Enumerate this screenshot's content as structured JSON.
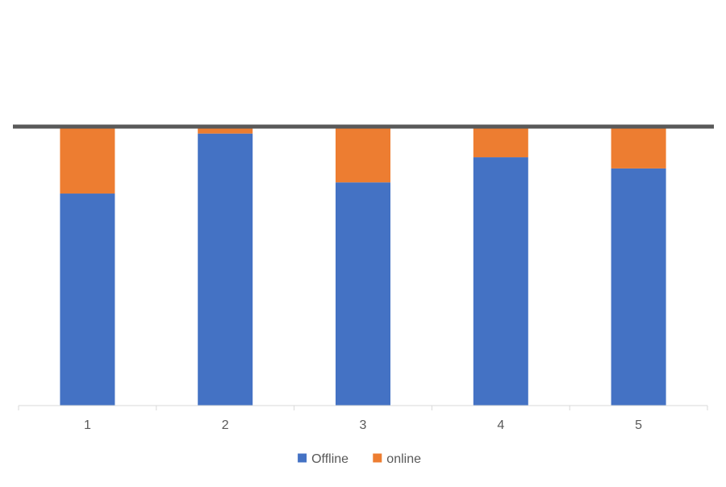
{
  "chart_data": {
    "type": "bar",
    "stacked": true,
    "categories": [
      "1",
      "2",
      "3",
      "4",
      "5"
    ],
    "series": [
      {
        "name": "Offline",
        "color": "#4472C4",
        "values": [
          76,
          97.5,
          80,
          89,
          85
        ]
      },
      {
        "name": "online",
        "color": "#ED7D31",
        "values": [
          24,
          2.5,
          20,
          11,
          15
        ]
      }
    ],
    "ylim": [
      0,
      100
    ],
    "grid": false,
    "legend": "bottom",
    "reference_line": {
      "value": 100,
      "color": "#595959"
    }
  }
}
